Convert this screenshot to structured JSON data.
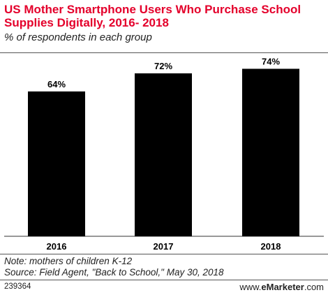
{
  "chart_data": {
    "type": "bar",
    "title": "US Mother Smartphone Users Who Purchase School Supplies Digitally, 2016- 2018",
    "subtitle": "% of respondents in each group",
    "categories": [
      "2016",
      "2017",
      "2018"
    ],
    "values": [
      64,
      72,
      74
    ],
    "value_labels": [
      "64%",
      "72%",
      "74%"
    ],
    "ylim": [
      0,
      80
    ],
    "grid": false,
    "bar_color": "#000000"
  },
  "notes": {
    "note": "Note: mothers of children K-12",
    "source": "Source: Field Agent, \"Back to School,\" May 30, 2018"
  },
  "footer": {
    "chart_id": "239364",
    "brand_prefix": "www.",
    "brand_name": "eMarketer",
    "brand_suffix": ".com"
  },
  "colors": {
    "title": "#e4002b",
    "bars": "#000000"
  }
}
